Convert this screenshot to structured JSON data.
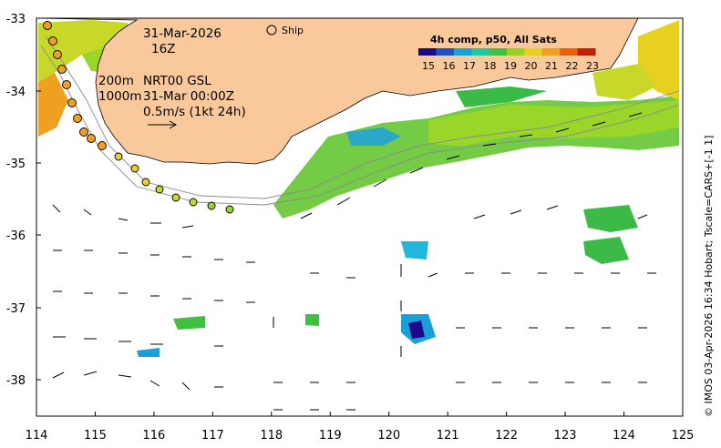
{
  "x_ticks": [
    "114",
    "115",
    "116",
    "117",
    "118",
    "119",
    "120",
    "121",
    "122",
    "123",
    "124",
    "125"
  ],
  "y_ticks": [
    "-33",
    "-34",
    "-35",
    "-36",
    "-37",
    "-38"
  ],
  "annotations": {
    "date": "31-Mar-2026",
    "hour": "16Z",
    "depth_top": "200m",
    "depth_bottom": "1000m",
    "product": "NRT00 GSL",
    "product_time": "31-Mar 00:00Z",
    "scale_label": "0.5m/s (1kt 24h)",
    "ship_label": "Ship"
  },
  "colorbar": {
    "title": "4h comp, p50, All Sats",
    "labels": [
      "15",
      "16",
      "17",
      "18",
      "19",
      "20",
      "21",
      "22",
      "23"
    ],
    "colors": [
      "#1a0a8a",
      "#2050c8",
      "#1aa0d8",
      "#20c8a0",
      "#40c040",
      "#9ad020",
      "#e8d020",
      "#f0a020",
      "#e86010",
      "#c02008"
    ]
  },
  "side_caption": "© IMOS 03-Apr-2026 16:34 Hobart; Tscale=CARS+[-1 1]",
  "colors": {
    "land": "#f9c99b",
    "ocean": "#ffffff"
  }
}
